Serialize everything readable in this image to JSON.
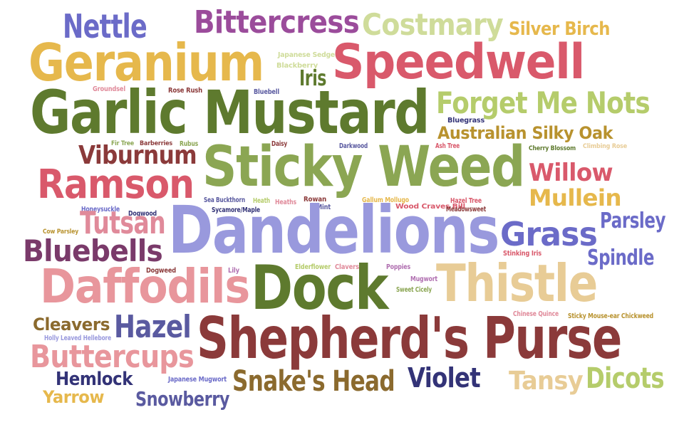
{
  "words": [
    {
      "text": "Nettle",
      "color": "#6b6bc8"
    },
    {
      "text": "Bittercress",
      "color": "#9b4c9b"
    },
    {
      "text": "Costmary",
      "color": "#cfdc9a"
    },
    {
      "text": "Silver Birch",
      "color": "#e6b84c"
    },
    {
      "text": "Geranium",
      "color": "#e6b84c"
    },
    {
      "text": "Speedwell",
      "color": "#d9596b"
    },
    {
      "text": "Japanese Sedge",
      "color": "#cfdc9a"
    },
    {
      "text": "Blackberry",
      "color": "#cfdc9a"
    },
    {
      "text": "Iris",
      "color": "#5e7a2e"
    },
    {
      "text": "Groundsel",
      "color": "#e08a9a"
    },
    {
      "text": "Rose Rush",
      "color": "#8b3a3a"
    },
    {
      "text": "Bluebell",
      "color": "#5a5aa0"
    },
    {
      "text": "Garlic Mustard",
      "color": "#5e7a2e"
    },
    {
      "text": "Forget Me Nots",
      "color": "#b5cc6b"
    },
    {
      "text": "Bluegrass",
      "color": "#333377"
    },
    {
      "text": "Australian Silky Oak",
      "color": "#b8922e"
    },
    {
      "text": "Fir Tree",
      "color": "#8ba653"
    },
    {
      "text": "Barberries",
      "color": "#8b3a3a"
    },
    {
      "text": "Rubus",
      "color": "#8ba653"
    },
    {
      "text": "Daisy",
      "color": "#8b3a3a"
    },
    {
      "text": "Darkwood",
      "color": "#5a5aa0"
    },
    {
      "text": "Ash Tree",
      "color": "#d9596b"
    },
    {
      "text": "Cherry Blossom",
      "color": "#5e7a2e"
    },
    {
      "text": "Climbing Rose",
      "color": "#e8cc96"
    },
    {
      "text": "Viburnum",
      "color": "#8b3a3a"
    },
    {
      "text": "Sticky Weed",
      "color": "#8ba653"
    },
    {
      "text": "Willow",
      "color": "#d9596b"
    },
    {
      "text": "Ramson",
      "color": "#d9596b"
    },
    {
      "text": "Mullein",
      "color": "#e6b84c"
    },
    {
      "text": "Sea Buckthorn",
      "color": "#5a5aa0"
    },
    {
      "text": "Heath",
      "color": "#b5cc6b"
    },
    {
      "text": "Rowan",
      "color": "#8b3a3a"
    },
    {
      "text": "Gallum Mollugo",
      "color": "#e6b84c"
    },
    {
      "text": "Hazel Tree",
      "color": "#d9596b"
    },
    {
      "text": "Honeysuckle",
      "color": "#6b6bc8"
    },
    {
      "text": "Heaths",
      "color": "#e08a9a"
    },
    {
      "text": "Mint",
      "color": "#5a5aa0"
    },
    {
      "text": "Wood Craves Bill",
      "color": "#d9596b"
    },
    {
      "text": "Sycamore/Maple",
      "color": "#333377"
    },
    {
      "text": "Meadowsweet",
      "color": "#8b3a3a"
    },
    {
      "text": "Dogwood",
      "color": "#333377"
    },
    {
      "text": "Parsley",
      "color": "#6b6bc8"
    },
    {
      "text": "Tutsan",
      "color": "#e08a9a"
    },
    {
      "text": "Dandelions",
      "color": "#9999dd"
    },
    {
      "text": "Grass",
      "color": "#6b6bc8"
    },
    {
      "text": "Cow Parsley",
      "color": "#b8922e"
    },
    {
      "text": "Bluebells",
      "color": "#7a3a6a"
    },
    {
      "text": "Stinking Iris",
      "color": "#d9596b"
    },
    {
      "text": "Spindle",
      "color": "#6b6bc8"
    },
    {
      "text": "Dogweed",
      "color": "#8b3a3a"
    },
    {
      "text": "Lily",
      "color": "#b06fb0"
    },
    {
      "text": "Elderflower",
      "color": "#b5cc6b"
    },
    {
      "text": "Clavers",
      "color": "#e08a9a"
    },
    {
      "text": "Poppies",
      "color": "#b06fb0"
    },
    {
      "text": "Mugwort",
      "color": "#b06fb0"
    },
    {
      "text": "Daffodils",
      "color": "#e8969c"
    },
    {
      "text": "Dock",
      "color": "#5e7a2e"
    },
    {
      "text": "Thistle",
      "color": "#e8cc96"
    },
    {
      "text": "Sweet Cicely",
      "color": "#8ba653"
    },
    {
      "text": "Chinese Quince",
      "color": "#e08a9a"
    },
    {
      "text": "Sticky Mouse-ear Chickweed",
      "color": "#b8922e"
    },
    {
      "text": "Cleavers",
      "color": "#8b6a2e"
    },
    {
      "text": "Hazel",
      "color": "#5a5aa0"
    },
    {
      "text": "Shepherd's Purse",
      "color": "#8b3a3a"
    },
    {
      "text": "Holly Leaved Hellebore",
      "color": "#9999dd"
    },
    {
      "text": "Buttercups",
      "color": "#e8969c"
    },
    {
      "text": "Hemlock",
      "color": "#333377"
    },
    {
      "text": "Japanese Mugwort",
      "color": "#6b6bc8"
    },
    {
      "text": "Snake's Head",
      "color": "#8b6a2e"
    },
    {
      "text": "Violet",
      "color": "#333377"
    },
    {
      "text": "Tansy",
      "color": "#e8cc96"
    },
    {
      "text": "Dicots",
      "color": "#b5cc6b"
    },
    {
      "text": "Yarrow",
      "color": "#e6b84c"
    },
    {
      "text": "Snowberry",
      "color": "#5a5aa0"
    }
  ]
}
